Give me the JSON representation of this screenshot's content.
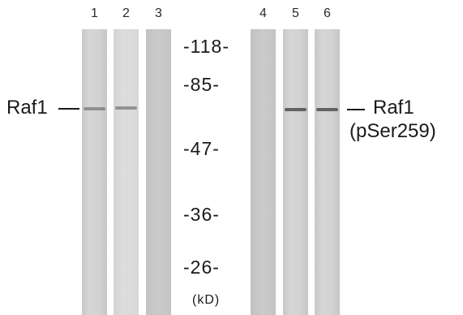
{
  "lanes": [
    "1",
    "2",
    "3",
    "4",
    "5",
    "6"
  ],
  "markers": [
    "-118-",
    "-85-",
    "-47-",
    "-36-",
    "-26-"
  ],
  "unit": "(kD)",
  "left_label": "Raf1",
  "right_label": {
    "line1": "Raf1",
    "line2": "(pSer259)"
  }
}
